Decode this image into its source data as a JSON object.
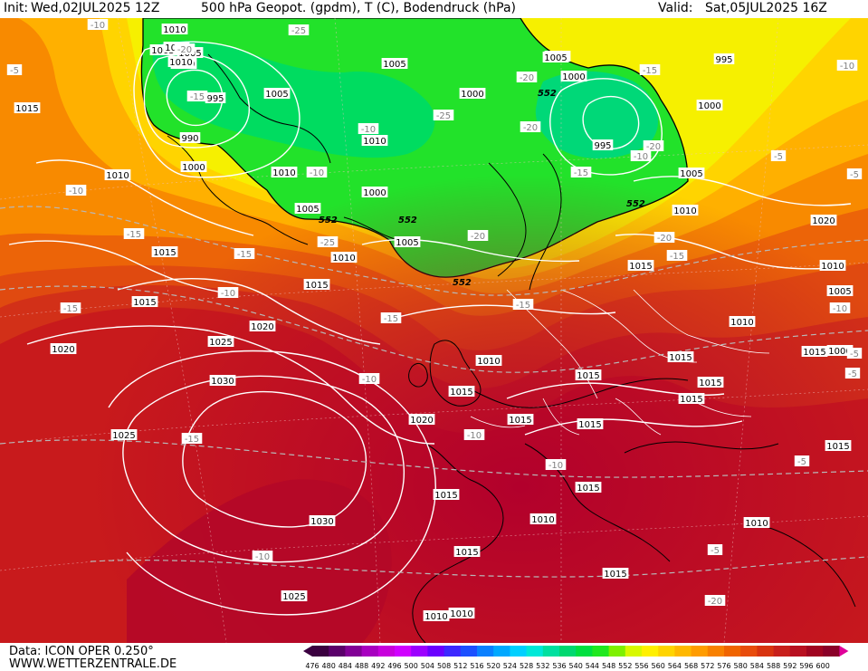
{
  "header": {
    "init_label": "Init:",
    "init_value": "Wed,02JUL2025 12Z",
    "title": "500 hPa Geopot. (gpdm), T (C), Bodendruck (hPa)",
    "valid_label": "Valid:",
    "valid_value": "Sat,05JUL2025 16Z"
  },
  "footer": {
    "data_source": "Data: ICON OPER 0.250°",
    "website": "WWW.WETTERZENTRALE.DE"
  },
  "legend": {
    "values": [
      "476",
      "480",
      "484",
      "488",
      "492",
      "496",
      "500",
      "504",
      "508",
      "512",
      "516",
      "520",
      "524",
      "528",
      "532",
      "536",
      "540",
      "544",
      "548",
      "552",
      "556",
      "560",
      "564",
      "568",
      "572",
      "576",
      "580",
      "584",
      "588",
      "592",
      "596",
      "600"
    ],
    "colors": [
      "#3b0040",
      "#5a006a",
      "#820096",
      "#a800c0",
      "#c800dc",
      "#d000ff",
      "#9c00ff",
      "#6a00ff",
      "#3c28ff",
      "#1c50ff",
      "#0a80ff",
      "#00a8ff",
      "#00d0ff",
      "#00e8d8",
      "#00e0a0",
      "#00d870",
      "#00e040",
      "#20e820",
      "#7ef000",
      "#d8f800",
      "#fff000",
      "#ffd400",
      "#ffb800",
      "#ff9c00",
      "#f88000",
      "#f06400",
      "#e84c0c",
      "#d83410",
      "#c8201c",
      "#b81020",
      "#a00420",
      "#8a0028"
    ]
  },
  "map": {
    "contour_552": "552",
    "pressure_labels": [
      "1010",
      "1005",
      "1005",
      "1000",
      "995",
      "990",
      "1000",
      "1005",
      "1010",
      "1005",
      "1005",
      "1000",
      "1005",
      "1010",
      "1010",
      "1000",
      "1005",
      "1005",
      "995",
      "1000",
      "1005",
      "995",
      "1000",
      "1005",
      "1010",
      "1015",
      "1015",
      "1010",
      "1015",
      "1015",
      "1020",
      "1020",
      "1025",
      "1030",
      "1025",
      "1030",
      "1025",
      "1020",
      "1015",
      "1010",
      "1015",
      "1015",
      "1015",
      "1015",
      "1015",
      "1015",
      "1015",
      "1015",
      "1015",
      "1010",
      "1015",
      "1015",
      "1010",
      "1010",
      "1010",
      "1020",
      "1010",
      "1005",
      "1000",
      "1015",
      "1010",
      "1015",
      "1010"
    ],
    "temp_labels": [
      "-10",
      "-5",
      "-25",
      "-20",
      "-15",
      "-10",
      "-10",
      "-25",
      "-20",
      "-15",
      "-20",
      "-25",
      "-15",
      "-10",
      "-15",
      "-15",
      "-10",
      "-15",
      "-20",
      "-20",
      "-15",
      "-10",
      "-15",
      "-10",
      "-15",
      "-10",
      "-10",
      "-5",
      "-10",
      "-5",
      "-5",
      "-5",
      "-5",
      "-10",
      "-20",
      "-15",
      "-10",
      "-5",
      "-20"
    ]
  }
}
